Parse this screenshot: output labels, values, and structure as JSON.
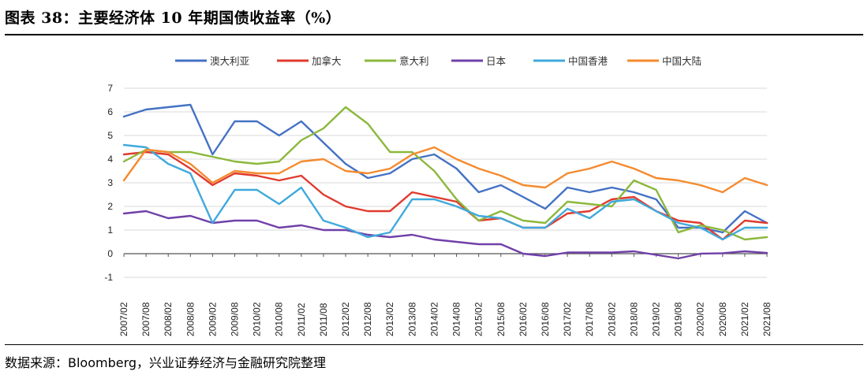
{
  "header": {
    "title": "图表 38：主要经济体 10 年期国债收益率（%）"
  },
  "footer": {
    "source": "数据来源：Bloomberg，兴业证券经济与金融研究院整理"
  },
  "chart_data": {
    "type": "line",
    "title": "",
    "xlabel": "",
    "ylabel": "",
    "ylim": [
      -1,
      7
    ],
    "yticks": [
      "-1",
      "0",
      "1",
      "2",
      "3",
      "4",
      "5",
      "6",
      "7"
    ],
    "grid": "horizontal",
    "legend_position": "top",
    "xticks": [
      "2007/02",
      "2007/08",
      "2008/02",
      "2008/08",
      "2009/02",
      "2009/08",
      "2010/02",
      "2010/08",
      "2011/02",
      "2011/08",
      "2012/02",
      "2012/08",
      "2013/02",
      "2013/08",
      "2014/02",
      "2014/08",
      "2015/02",
      "2015/08",
      "2016/02",
      "2016/08",
      "2017/02",
      "2017/08",
      "2018/02",
      "2018/08",
      "2019/02",
      "2019/08",
      "2020/02",
      "2020/08",
      "2021/02",
      "2021/08"
    ],
    "series": [
      {
        "name": "澳大利亚",
        "color": "#4472C4",
        "values": [
          5.8,
          6.1,
          6.2,
          6.3,
          4.2,
          5.6,
          5.6,
          5.0,
          5.6,
          4.7,
          3.8,
          3.2,
          3.4,
          4.0,
          4.2,
          3.6,
          2.6,
          2.9,
          2.4,
          1.9,
          2.8,
          2.6,
          2.8,
          2.6,
          2.3,
          1.1,
          1.1,
          0.9,
          1.8,
          1.3
        ]
      },
      {
        "name": "加拿大",
        "color": "#E03A2E",
        "values": [
          4.2,
          4.3,
          4.2,
          3.6,
          2.9,
          3.4,
          3.3,
          3.1,
          3.3,
          2.5,
          2.0,
          1.8,
          1.8,
          2.6,
          2.4,
          2.2,
          1.4,
          1.5,
          1.1,
          1.1,
          1.7,
          1.8,
          2.3,
          2.4,
          1.8,
          1.4,
          1.3,
          0.6,
          1.4,
          1.3
        ]
      },
      {
        "name": "意大利",
        "color": "#8BB83C",
        "values": [
          3.9,
          4.4,
          4.3,
          4.3,
          4.1,
          3.9,
          3.8,
          3.9,
          4.8,
          5.3,
          6.2,
          5.5,
          4.3,
          4.3,
          3.5,
          2.3,
          1.4,
          1.8,
          1.4,
          1.3,
          2.2,
          2.1,
          2.0,
          3.1,
          2.7,
          0.9,
          1.2,
          1.0,
          0.6,
          0.7
        ]
      },
      {
        "name": "日本",
        "color": "#7040A8",
        "values": [
          1.7,
          1.8,
          1.5,
          1.6,
          1.3,
          1.4,
          1.4,
          1.1,
          1.2,
          1.0,
          1.0,
          0.8,
          0.7,
          0.8,
          0.6,
          0.5,
          0.4,
          0.4,
          0.0,
          -0.1,
          0.05,
          0.05,
          0.05,
          0.1,
          -0.05,
          -0.2,
          0.0,
          0.02,
          0.1,
          0.03
        ]
      },
      {
        "name": "中国香港",
        "color": "#3FA9DC",
        "values": [
          4.6,
          4.5,
          3.8,
          3.4,
          1.3,
          2.7,
          2.7,
          2.1,
          2.8,
          1.4,
          1.1,
          0.7,
          0.9,
          2.3,
          2.3,
          2.0,
          1.6,
          1.5,
          1.1,
          1.1,
          1.9,
          1.5,
          2.2,
          2.3,
          1.8,
          1.3,
          1.1,
          0.6,
          1.1,
          1.1
        ]
      },
      {
        "name": "中国大陆",
        "color": "#F58A2E",
        "values": [
          3.1,
          4.4,
          4.3,
          3.8,
          3.0,
          3.5,
          3.4,
          3.4,
          3.9,
          4.0,
          3.5,
          3.4,
          3.6,
          4.2,
          4.5,
          4.0,
          3.6,
          3.3,
          2.9,
          2.8,
          3.4,
          3.6,
          3.9,
          3.6,
          3.2,
          3.1,
          2.9,
          2.6,
          3.2,
          2.9
        ]
      }
    ]
  }
}
